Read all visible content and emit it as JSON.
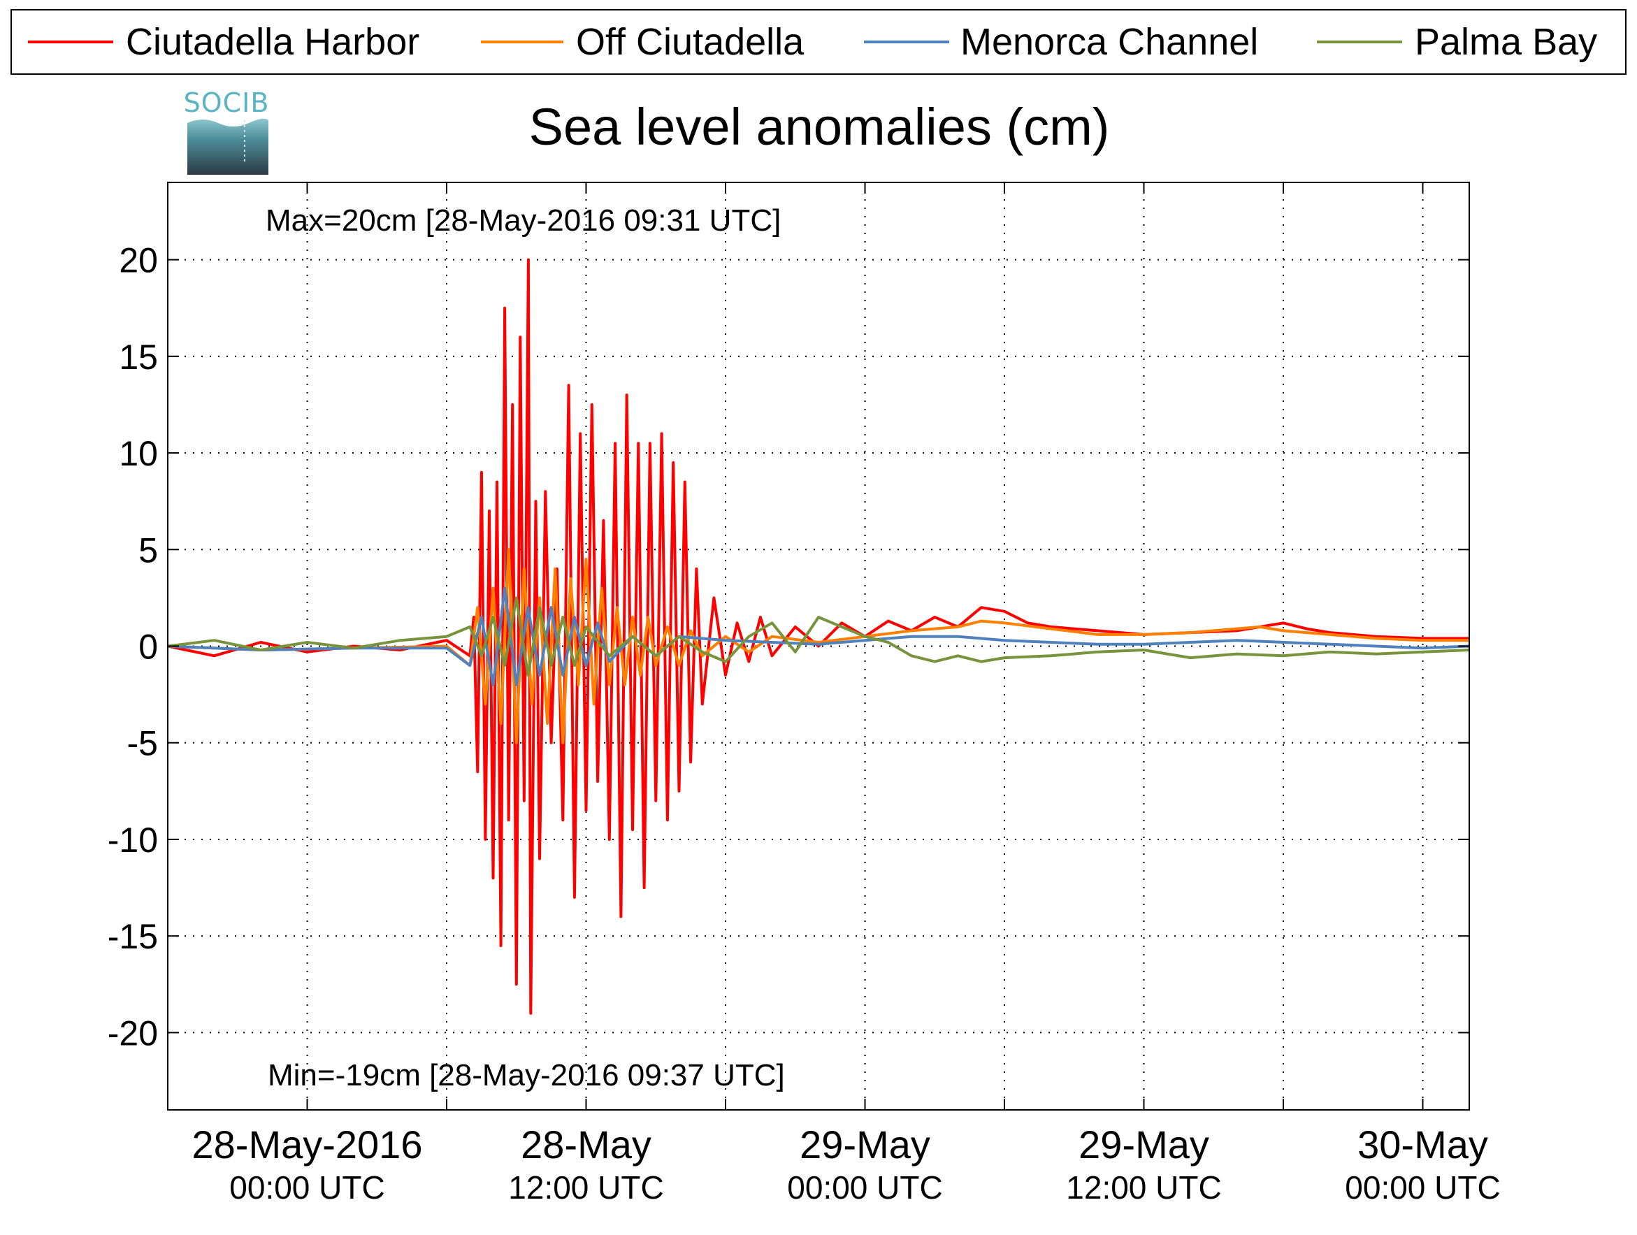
{
  "chart_data": {
    "type": "line",
    "title": "Sea level anomalies (cm)",
    "xlabel": "",
    "ylabel": "",
    "xlim": [
      "2016-05-27T18:00",
      "2016-05-30T02:00"
    ],
    "ylim": [
      -24,
      24
    ],
    "yticks": [
      20,
      15,
      10,
      5,
      0,
      -5,
      -10,
      -15,
      -20
    ],
    "ytick_labels": [
      "20",
      "15",
      "10",
      "5",
      "0",
      "-5",
      "-10",
      "-15",
      "-20"
    ],
    "xticks": [
      {
        "t": "2016-05-28T00:00",
        "line1": "28-May-2016",
        "line2": "00:00 UTC"
      },
      {
        "t": "2016-05-28T12:00",
        "line1": "28-May",
        "line2": "12:00 UTC"
      },
      {
        "t": "2016-05-29T00:00",
        "line1": "29-May",
        "line2": "00:00 UTC"
      },
      {
        "t": "2016-05-29T12:00",
        "line1": "29-May",
        "line2": "12:00 UTC"
      },
      {
        "t": "2016-05-30T00:00",
        "line1": "30-May",
        "line2": "00:00 UTC"
      }
    ],
    "grid": true,
    "legend_position": "top",
    "logo_text": "SOCIB",
    "annotations": {
      "max": "Max=20cm [28-May-2016 09:31 UTC]",
      "min": "Min=-19cm [28-May-2016 09:37 UTC]",
      "color": "#ff0000"
    },
    "series": [
      {
        "name": "Ciutadella Harbor",
        "color": "#ff0000",
        "x": [
          "2016-05-27T18:00",
          "2016-05-27T20:00",
          "2016-05-27T22:00",
          "2016-05-28T00:00",
          "2016-05-28T02:00",
          "2016-05-28T04:00",
          "2016-05-28T06:00",
          "2016-05-28T07:00",
          "2016-05-28T07:10",
          "2016-05-28T07:20",
          "2016-05-28T07:30",
          "2016-05-28T07:40",
          "2016-05-28T07:50",
          "2016-05-28T08:00",
          "2016-05-28T08:10",
          "2016-05-28T08:20",
          "2016-05-28T08:30",
          "2016-05-28T08:40",
          "2016-05-28T08:50",
          "2016-05-28T09:00",
          "2016-05-28T09:10",
          "2016-05-28T09:20",
          "2016-05-28T09:31",
          "2016-05-28T09:37",
          "2016-05-28T09:50",
          "2016-05-28T10:00",
          "2016-05-28T10:15",
          "2016-05-28T10:30",
          "2016-05-28T10:45",
          "2016-05-28T11:00",
          "2016-05-28T11:15",
          "2016-05-28T11:30",
          "2016-05-28T11:45",
          "2016-05-28T12:00",
          "2016-05-28T12:15",
          "2016-05-28T12:30",
          "2016-05-28T12:45",
          "2016-05-28T13:00",
          "2016-05-28T13:15",
          "2016-05-28T13:30",
          "2016-05-28T13:45",
          "2016-05-28T14:00",
          "2016-05-28T14:15",
          "2016-05-28T14:30",
          "2016-05-28T14:45",
          "2016-05-28T15:00",
          "2016-05-28T15:15",
          "2016-05-28T15:30",
          "2016-05-28T15:45",
          "2016-05-28T16:00",
          "2016-05-28T16:15",
          "2016-05-28T16:30",
          "2016-05-28T16:45",
          "2016-05-28T17:00",
          "2016-05-28T17:30",
          "2016-05-28T18:00",
          "2016-05-28T18:30",
          "2016-05-28T19:00",
          "2016-05-28T19:30",
          "2016-05-28T20:00",
          "2016-05-28T21:00",
          "2016-05-28T22:00",
          "2016-05-28T23:00",
          "2016-05-29T00:00",
          "2016-05-29T01:00",
          "2016-05-29T02:00",
          "2016-05-29T03:00",
          "2016-05-29T04:00",
          "2016-05-29T05:00",
          "2016-05-29T06:00",
          "2016-05-29T07:00",
          "2016-05-29T08:00",
          "2016-05-29T10:00",
          "2016-05-29T12:00",
          "2016-05-29T14:00",
          "2016-05-29T16:00",
          "2016-05-29T17:00",
          "2016-05-29T18:00",
          "2016-05-29T19:00",
          "2016-05-29T20:00",
          "2016-05-29T22:00",
          "2016-05-30T00:00",
          "2016-05-30T02:00"
        ],
        "y": [
          0,
          -0.5,
          0.2,
          -0.3,
          0,
          -0.2,
          0.3,
          -0.5,
          1.5,
          -6.5,
          9,
          -10,
          7,
          -12,
          8.5,
          -15.5,
          17.5,
          -9,
          12.5,
          -17.5,
          16,
          -8,
          20,
          -19,
          7.5,
          -11,
          8,
          -5,
          4,
          -9,
          13.5,
          -13,
          11,
          -8.5,
          12.5,
          -7,
          6.5,
          -10,
          10.5,
          -14,
          13,
          -9.5,
          10.5,
          -12.5,
          10.5,
          -8,
          11,
          -9,
          9.5,
          -7.5,
          8.5,
          -6,
          4,
          -3,
          2.5,
          -1.5,
          1.2,
          -0.8,
          1.5,
          -0.5,
          1,
          0,
          1.2,
          0.5,
          1.3,
          0.8,
          1.5,
          1.0,
          2.0,
          1.8,
          1.2,
          1.0,
          0.8,
          0.6,
          0.7,
          0.8,
          1.0,
          1.2,
          0.9,
          0.7,
          0.5,
          0.4,
          0.4
        ]
      },
      {
        "name": "Off Ciutadella",
        "color": "#ff8000",
        "x": [
          "2016-05-27T18:00",
          "2016-05-27T22:00",
          "2016-05-28T02:00",
          "2016-05-28T06:00",
          "2016-05-28T07:00",
          "2016-05-28T07:20",
          "2016-05-28T07:40",
          "2016-05-28T08:00",
          "2016-05-28T08:20",
          "2016-05-28T08:40",
          "2016-05-28T09:00",
          "2016-05-28T09:20",
          "2016-05-28T09:40",
          "2016-05-28T10:00",
          "2016-05-28T10:20",
          "2016-05-28T10:40",
          "2016-05-28T11:00",
          "2016-05-28T11:20",
          "2016-05-28T11:40",
          "2016-05-28T12:00",
          "2016-05-28T12:20",
          "2016-05-28T12:40",
          "2016-05-28T13:00",
          "2016-05-28T13:20",
          "2016-05-28T13:40",
          "2016-05-28T14:00",
          "2016-05-28T14:20",
          "2016-05-28T14:40",
          "2016-05-28T15:00",
          "2016-05-28T15:30",
          "2016-05-28T16:00",
          "2016-05-28T16:30",
          "2016-05-28T17:00",
          "2016-05-28T18:00",
          "2016-05-28T19:00",
          "2016-05-28T20:00",
          "2016-05-28T22:00",
          "2016-05-29T00:00",
          "2016-05-29T02:00",
          "2016-05-29T04:00",
          "2016-05-29T05:00",
          "2016-05-29T06:00",
          "2016-05-29T08:00",
          "2016-05-29T10:00",
          "2016-05-29T12:00",
          "2016-05-29T14:00",
          "2016-05-29T16:00",
          "2016-05-29T17:00",
          "2016-05-29T18:00",
          "2016-05-29T20:00",
          "2016-05-29T22:00",
          "2016-05-30T00:00",
          "2016-05-30T02:00"
        ],
        "y": [
          0,
          -0.2,
          -0.1,
          0,
          -1,
          2,
          -3,
          3,
          -4,
          5,
          -5,
          4,
          -3,
          2.5,
          -4,
          4,
          -5,
          3.5,
          -2,
          4.5,
          -3,
          3,
          -2,
          2,
          -2,
          1.5,
          -1.5,
          1.5,
          -1,
          1,
          -1,
          0.8,
          -0.5,
          0.5,
          -0.3,
          0.5,
          0.2,
          0.5,
          0.8,
          1.0,
          1.3,
          1.2,
          0.9,
          0.6,
          0.6,
          0.7,
          0.9,
          1.0,
          0.8,
          0.6,
          0.4,
          0.3,
          0.3
        ]
      },
      {
        "name": "Menorca Channel",
        "color": "#4f81bd",
        "x": [
          "2016-05-27T18:00",
          "2016-05-27T22:00",
          "2016-05-28T02:00",
          "2016-05-28T06:00",
          "2016-05-28T07:00",
          "2016-05-28T07:30",
          "2016-05-28T08:00",
          "2016-05-28T08:30",
          "2016-05-28T09:00",
          "2016-05-28T09:30",
          "2016-05-28T10:00",
          "2016-05-28T10:30",
          "2016-05-28T11:00",
          "2016-05-28T11:30",
          "2016-05-28T12:00",
          "2016-05-28T12:30",
          "2016-05-28T13:00",
          "2016-05-28T14:00",
          "2016-05-28T15:00",
          "2016-05-28T16:00",
          "2016-05-28T18:00",
          "2016-05-28T20:00",
          "2016-05-28T22:00",
          "2016-05-29T00:00",
          "2016-05-29T02:00",
          "2016-05-29T04:00",
          "2016-05-29T06:00",
          "2016-05-29T08:00",
          "2016-05-29T10:00",
          "2016-05-29T12:00",
          "2016-05-29T14:00",
          "2016-05-29T16:00",
          "2016-05-29T18:00",
          "2016-05-29T20:00",
          "2016-05-29T22:00",
          "2016-05-30T00:00",
          "2016-05-30T02:00"
        ],
        "y": [
          0,
          -0.2,
          -0.1,
          -0.1,
          -1,
          1.5,
          -2,
          3,
          -2,
          2,
          -1.5,
          2,
          -1.5,
          1.5,
          -1,
          1.2,
          -0.8,
          0.5,
          -0.5,
          0.5,
          0.3,
          0.2,
          0.1,
          0.3,
          0.5,
          0.5,
          0.3,
          0.2,
          0.1,
          0.1,
          0.2,
          0.3,
          0.2,
          0.1,
          0,
          -0.1,
          0
        ]
      },
      {
        "name": "Palma Bay",
        "color": "#77933c",
        "x": [
          "2016-05-27T18:00",
          "2016-05-27T20:00",
          "2016-05-27T22:00",
          "2016-05-28T00:00",
          "2016-05-28T02:00",
          "2016-05-28T04:00",
          "2016-05-28T06:00",
          "2016-05-28T07:00",
          "2016-05-28T07:30",
          "2016-05-28T08:00",
          "2016-05-28T08:30",
          "2016-05-28T09:00",
          "2016-05-28T09:30",
          "2016-05-28T10:00",
          "2016-05-28T10:30",
          "2016-05-28T11:00",
          "2016-05-28T11:30",
          "2016-05-28T12:00",
          "2016-05-28T13:00",
          "2016-05-28T14:00",
          "2016-05-28T15:00",
          "2016-05-28T16:00",
          "2016-05-28T17:00",
          "2016-05-28T18:00",
          "2016-05-28T19:00",
          "2016-05-28T20:00",
          "2016-05-28T21:00",
          "2016-05-28T22:00",
          "2016-05-28T23:00",
          "2016-05-29T00:00",
          "2016-05-29T01:00",
          "2016-05-29T02:00",
          "2016-05-29T03:00",
          "2016-05-29T04:00",
          "2016-05-29T05:00",
          "2016-05-29T06:00",
          "2016-05-29T08:00",
          "2016-05-29T10:00",
          "2016-05-29T12:00",
          "2016-05-29T14:00",
          "2016-05-29T16:00",
          "2016-05-29T18:00",
          "2016-05-29T20:00",
          "2016-05-29T22:00",
          "2016-05-30T00:00",
          "2016-05-30T02:00"
        ],
        "y": [
          0,
          0.3,
          -0.2,
          0.2,
          -0.1,
          0.3,
          0.5,
          1.0,
          -0.5,
          1.5,
          -1,
          2.5,
          -1.5,
          2,
          -1,
          1.5,
          -1,
          1,
          -0.5,
          0.5,
          -0.5,
          0.5,
          -0.3,
          -0.8,
          0.5,
          1.2,
          -0.3,
          1.5,
          1.0,
          0.5,
          0.2,
          -0.5,
          -0.8,
          -0.5,
          -0.8,
          -0.6,
          -0.5,
          -0.3,
          -0.2,
          -0.6,
          -0.4,
          -0.5,
          -0.3,
          -0.4,
          -0.3,
          -0.2
        ]
      }
    ]
  }
}
